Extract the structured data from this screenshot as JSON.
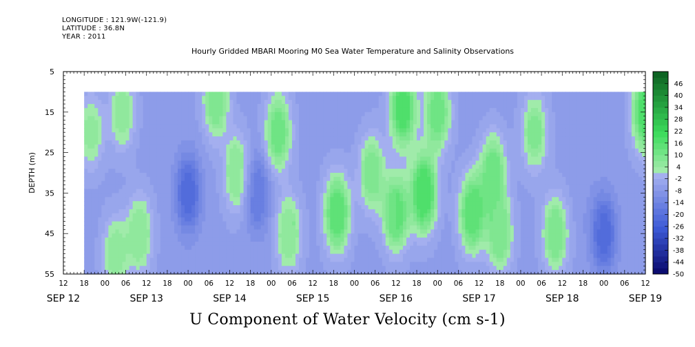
{
  "header": {
    "longitude": "LONGITUDE : 121.9W(-121.9)",
    "latitude": "LATITUDE : 36.8N",
    "year": "YEAR : 2011"
  },
  "chart_data": {
    "type": "heatmap",
    "title": "Hourly Gridded MBARI Mooring M0 Sea Water Temperature and Salinity Observations",
    "bottom_title": "U Component of Water Velocity (cm s-1)",
    "ylabel": "DEPTH (m)",
    "ylim": [
      55,
      5
    ],
    "y_ticks": [
      5,
      15,
      25,
      35,
      45,
      55
    ],
    "data_depth_range": [
      10,
      55
    ],
    "x_start": "SEP 12 12:00",
    "x_end": "SEP 19 12:00",
    "data_start": "SEP 12 18:00",
    "x_hour_labels": [
      "12",
      "18",
      "00",
      "06",
      "12",
      "18",
      "00",
      "06",
      "12",
      "18",
      "00",
      "06",
      "12",
      "18",
      "00",
      "06",
      "12",
      "18",
      "00",
      "06",
      "12",
      "18",
      "00",
      "06",
      "12",
      "18",
      "00",
      "06",
      "12"
    ],
    "x_day_labels": [
      "SEP 12",
      "SEP 13",
      "SEP 14",
      "SEP 15",
      "SEP 16",
      "SEP 17",
      "SEP 18",
      "SEP 19"
    ],
    "colorbar_labels": [
      "46",
      "40",
      "34",
      "28",
      "22",
      "16",
      "10",
      "4",
      "-2",
      "-8",
      "-14",
      "-20",
      "-26",
      "-32",
      "-38",
      "-44",
      "-50"
    ],
    "colorbar_range": [
      -50,
      52
    ],
    "colorbar_step": 3,
    "colors": {
      "negative_strong": "#0a0a6e",
      "negative_mid": "#3c5ad6",
      "negative_light": "#aab4f0",
      "positive_light": "#a8ecb0",
      "positive_mid": "#3cdc5c",
      "positive_strong": "#0a5a1e"
    },
    "u_velocity_features": [
      {
        "time": "SEP 12 20:00",
        "depth": 20,
        "value": 3
      },
      {
        "time": "SEP 13 03:00",
        "depth": 50,
        "value": 4
      },
      {
        "time": "SEP 13 05:00",
        "depth": 15,
        "value": 4
      },
      {
        "time": "SEP 13 10:00",
        "depth": 45,
        "value": 6
      },
      {
        "time": "SEP 14 00:00",
        "depth": 35,
        "value": -22
      },
      {
        "time": "SEP 14 08:00",
        "depth": 12,
        "value": 8
      },
      {
        "time": "SEP 14 14:00",
        "depth": 30,
        "value": 6
      },
      {
        "time": "SEP 14 20:00",
        "depth": 35,
        "value": -18
      },
      {
        "time": "SEP 15 02:00",
        "depth": 20,
        "value": 10
      },
      {
        "time": "SEP 15 05:00",
        "depth": 45,
        "value": 6
      },
      {
        "time": "SEP 15 19:00",
        "depth": 40,
        "value": 14
      },
      {
        "time": "SEP 16 05:00",
        "depth": 30,
        "value": 7
      },
      {
        "time": "SEP 16 12:00",
        "depth": 40,
        "value": 12
      },
      {
        "time": "SEP 16 14:00",
        "depth": 14,
        "value": 16
      },
      {
        "time": "SEP 16 20:00",
        "depth": 35,
        "value": 18
      },
      {
        "time": "SEP 17 00:00",
        "depth": 15,
        "value": 10
      },
      {
        "time": "SEP 17 10:00",
        "depth": 40,
        "value": 14
      },
      {
        "time": "SEP 17 16:00",
        "depth": 30,
        "value": 10
      },
      {
        "time": "SEP 17 18:00",
        "depth": 45,
        "value": 8
      },
      {
        "time": "SEP 18 04:00",
        "depth": 20,
        "value": 6
      },
      {
        "time": "SEP 18 10:00",
        "depth": 45,
        "value": 8
      },
      {
        "time": "SEP 18 18:00",
        "depth": 35,
        "value": -8
      },
      {
        "time": "SEP 19 00:00",
        "depth": 45,
        "value": -22
      },
      {
        "time": "SEP 19 12:00",
        "depth": 15,
        "value": 16
      }
    ]
  }
}
